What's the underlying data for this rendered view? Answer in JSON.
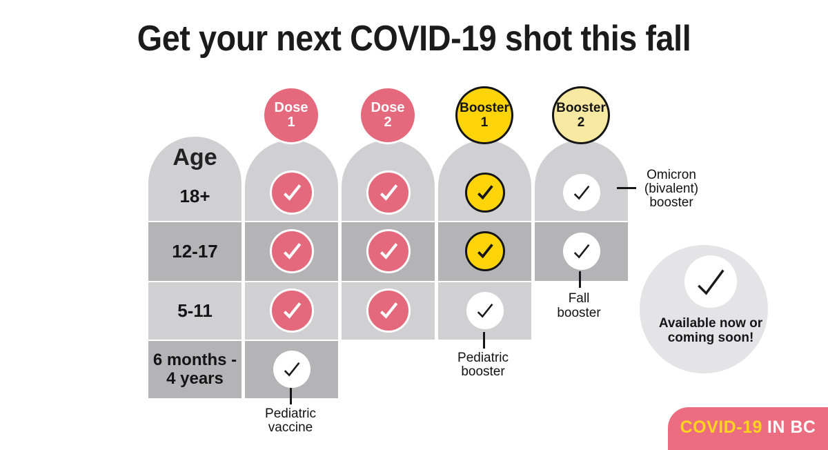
{
  "title": "Get your next COVID-19 shot this fall",
  "colors": {
    "pink": "#e5697c",
    "badge_pink": "#ed6d80",
    "bright_yellow": "#fdd408",
    "pale_yellow": "#f7e8a2",
    "row_light_gray": "#d0d0d2",
    "row_dark_gray": "#b4b4b6",
    "legend_gray": "#e4e4e6",
    "badge_covid_yellow": "#ffd41e",
    "text_black": "#1d1d1f"
  },
  "table": {
    "age_header": "Age",
    "columns": [
      {
        "id": "dose1",
        "lines": [
          "Dose",
          "1"
        ],
        "style": "pink"
      },
      {
        "id": "dose2",
        "lines": [
          "Dose",
          "2"
        ],
        "style": "pink"
      },
      {
        "id": "booster1",
        "lines": [
          "Booster",
          "1"
        ],
        "style": "yellow"
      },
      {
        "id": "booster2",
        "lines": [
          "Booster",
          "2"
        ],
        "style": "pale"
      }
    ],
    "rows": [
      {
        "label_lines": [
          "18+"
        ],
        "checks": {
          "dose1": "pink",
          "dose2": "pink",
          "booster1": "yellow",
          "booster2": "white"
        }
      },
      {
        "label_lines": [
          "12-17"
        ],
        "checks": {
          "dose1": "pink",
          "dose2": "pink",
          "booster1": "yellow",
          "booster2": "white"
        }
      },
      {
        "label_lines": [
          "5-11"
        ],
        "checks": {
          "dose1": "pink",
          "dose2": "pink",
          "booster1": "white"
        }
      },
      {
        "label_lines": [
          "6 months -",
          "4 years"
        ],
        "checks": {
          "dose1": "white"
        }
      }
    ]
  },
  "annotations": {
    "omicron": {
      "lines": [
        "Omicron",
        "(bivalent)",
        "booster"
      ]
    },
    "fall_booster": {
      "lines": [
        "Fall",
        "booster"
      ]
    },
    "pediatric_booster": {
      "lines": [
        "Pediatric",
        "booster"
      ]
    },
    "pediatric_vaccine": {
      "lines": [
        "Pediatric",
        "vaccine"
      ]
    }
  },
  "legend": {
    "lines": [
      "Available now or",
      "coming soon!"
    ]
  },
  "badge": {
    "covid": "COVID-19",
    "in_bc": "IN BC"
  }
}
